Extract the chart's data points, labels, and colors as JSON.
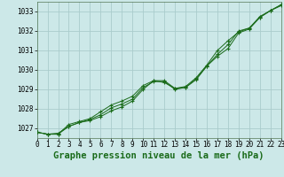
{
  "title": "Graphe pression niveau de la mer (hPa)",
  "background_color": "#cce8e8",
  "grid_color": "#aacccc",
  "line_color": "#1a6b1a",
  "xlim": [
    0,
    23
  ],
  "ylim": [
    1026.5,
    1033.5
  ],
  "yticks": [
    1027,
    1028,
    1029,
    1030,
    1031,
    1032,
    1033
  ],
  "xticks": [
    0,
    1,
    2,
    3,
    4,
    5,
    6,
    7,
    8,
    9,
    10,
    11,
    12,
    13,
    14,
    15,
    16,
    17,
    18,
    19,
    20,
    21,
    22,
    23
  ],
  "series": [
    [
      1026.8,
      1026.7,
      1026.7,
      1027.1,
      1027.3,
      1027.4,
      1027.6,
      1027.9,
      1028.1,
      1028.4,
      1029.0,
      1029.45,
      1029.45,
      1029.05,
      1029.1,
      1029.5,
      1030.2,
      1030.7,
      1031.1,
      1031.9,
      1032.1,
      1032.7,
      1033.05,
      1033.3
    ],
    [
      1026.8,
      1026.7,
      1026.7,
      1027.2,
      1027.35,
      1027.5,
      1027.85,
      1028.2,
      1028.4,
      1028.65,
      1029.2,
      1029.45,
      1029.35,
      1029.05,
      1029.15,
      1029.6,
      1030.25,
      1031.0,
      1031.5,
      1031.95,
      1032.15,
      1032.7,
      1033.05,
      1033.35
    ],
    [
      1026.8,
      1026.7,
      1026.75,
      1027.1,
      1027.3,
      1027.45,
      1027.7,
      1028.05,
      1028.25,
      1028.5,
      1029.1,
      1029.4,
      1029.4,
      1029.0,
      1029.1,
      1029.55,
      1030.2,
      1030.8,
      1031.3,
      1032.0,
      1032.15,
      1032.75,
      1033.05,
      1033.35
    ]
  ],
  "title_fontsize": 7.5,
  "tick_fontsize": 5.5
}
